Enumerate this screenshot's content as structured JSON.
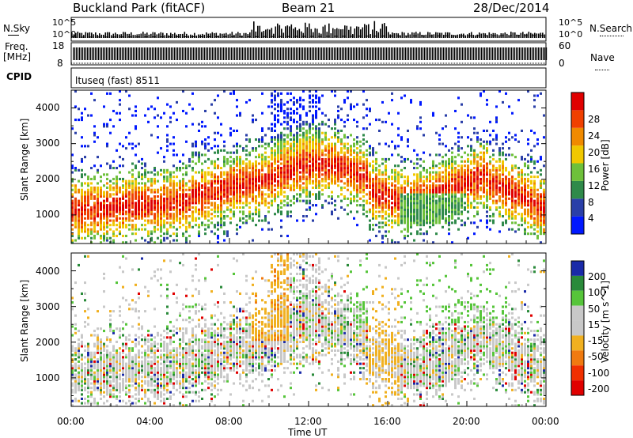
{
  "header": {
    "station": "Buckland Park (fitACF)",
    "beam": "Beam 21",
    "date": "28/Dec/2014"
  },
  "sky_panel": {
    "left_label": "N.Sky",
    "right_label": "N.Search",
    "tick_top": "10^5",
    "tick_bottom": "10^0",
    "right_tick_top": "10^5",
    "right_tick_bottom": "10^0"
  },
  "freq_panel": {
    "left_label_line1": "Freq.",
    "left_label_line2": "[MHz]",
    "tick_top": "18",
    "tick_bottom": "8",
    "right_label": "Nave",
    "right_tick_top": "60",
    "right_tick_bottom": "0"
  },
  "cpid_panel": {
    "label": "CPID",
    "value": "ltuseq (fast) 8511"
  },
  "chart_data": [
    {
      "type": "heatmap",
      "name": "power",
      "ylabel": "Slant Range [km]",
      "yticks": [
        "1000",
        "2000",
        "3000",
        "4000"
      ],
      "ylim": [
        200,
        4500
      ],
      "colorbar_label": "Power [dB]",
      "colorbar_ticks": [
        "4",
        "8",
        "12",
        "16",
        "20",
        "24",
        "28"
      ],
      "colorbar_colors": [
        "#0018ff",
        "#2a3fa8",
        "#2f8a4a",
        "#6ec03a",
        "#f0c800",
        "#f08a00",
        "#f04000",
        "#e00000"
      ]
    },
    {
      "type": "heatmap",
      "name": "velocity",
      "ylabel": "Slant Range [km]",
      "yticks": [
        "1000",
        "2000",
        "3000",
        "4000"
      ],
      "ylim": [
        200,
        4500
      ],
      "colorbar_label": "Velocity [m s^-1]",
      "colorbar_ticks": [
        "200",
        "100",
        "50",
        "15",
        "-15",
        "-50",
        "-100",
        "-200"
      ],
      "colorbar_colors": [
        "#1a2aa8",
        "#2a8a3a",
        "#56c53a",
        "#c8c8c8",
        "#c8c8c8",
        "#f0b020",
        "#f07a10",
        "#f03000",
        "#e00000"
      ]
    }
  ],
  "xaxis": {
    "label": "Time UT",
    "ticks": [
      "00:00",
      "04:00",
      "08:00",
      "12:00",
      "16:00",
      "20:00",
      "00:00"
    ]
  }
}
